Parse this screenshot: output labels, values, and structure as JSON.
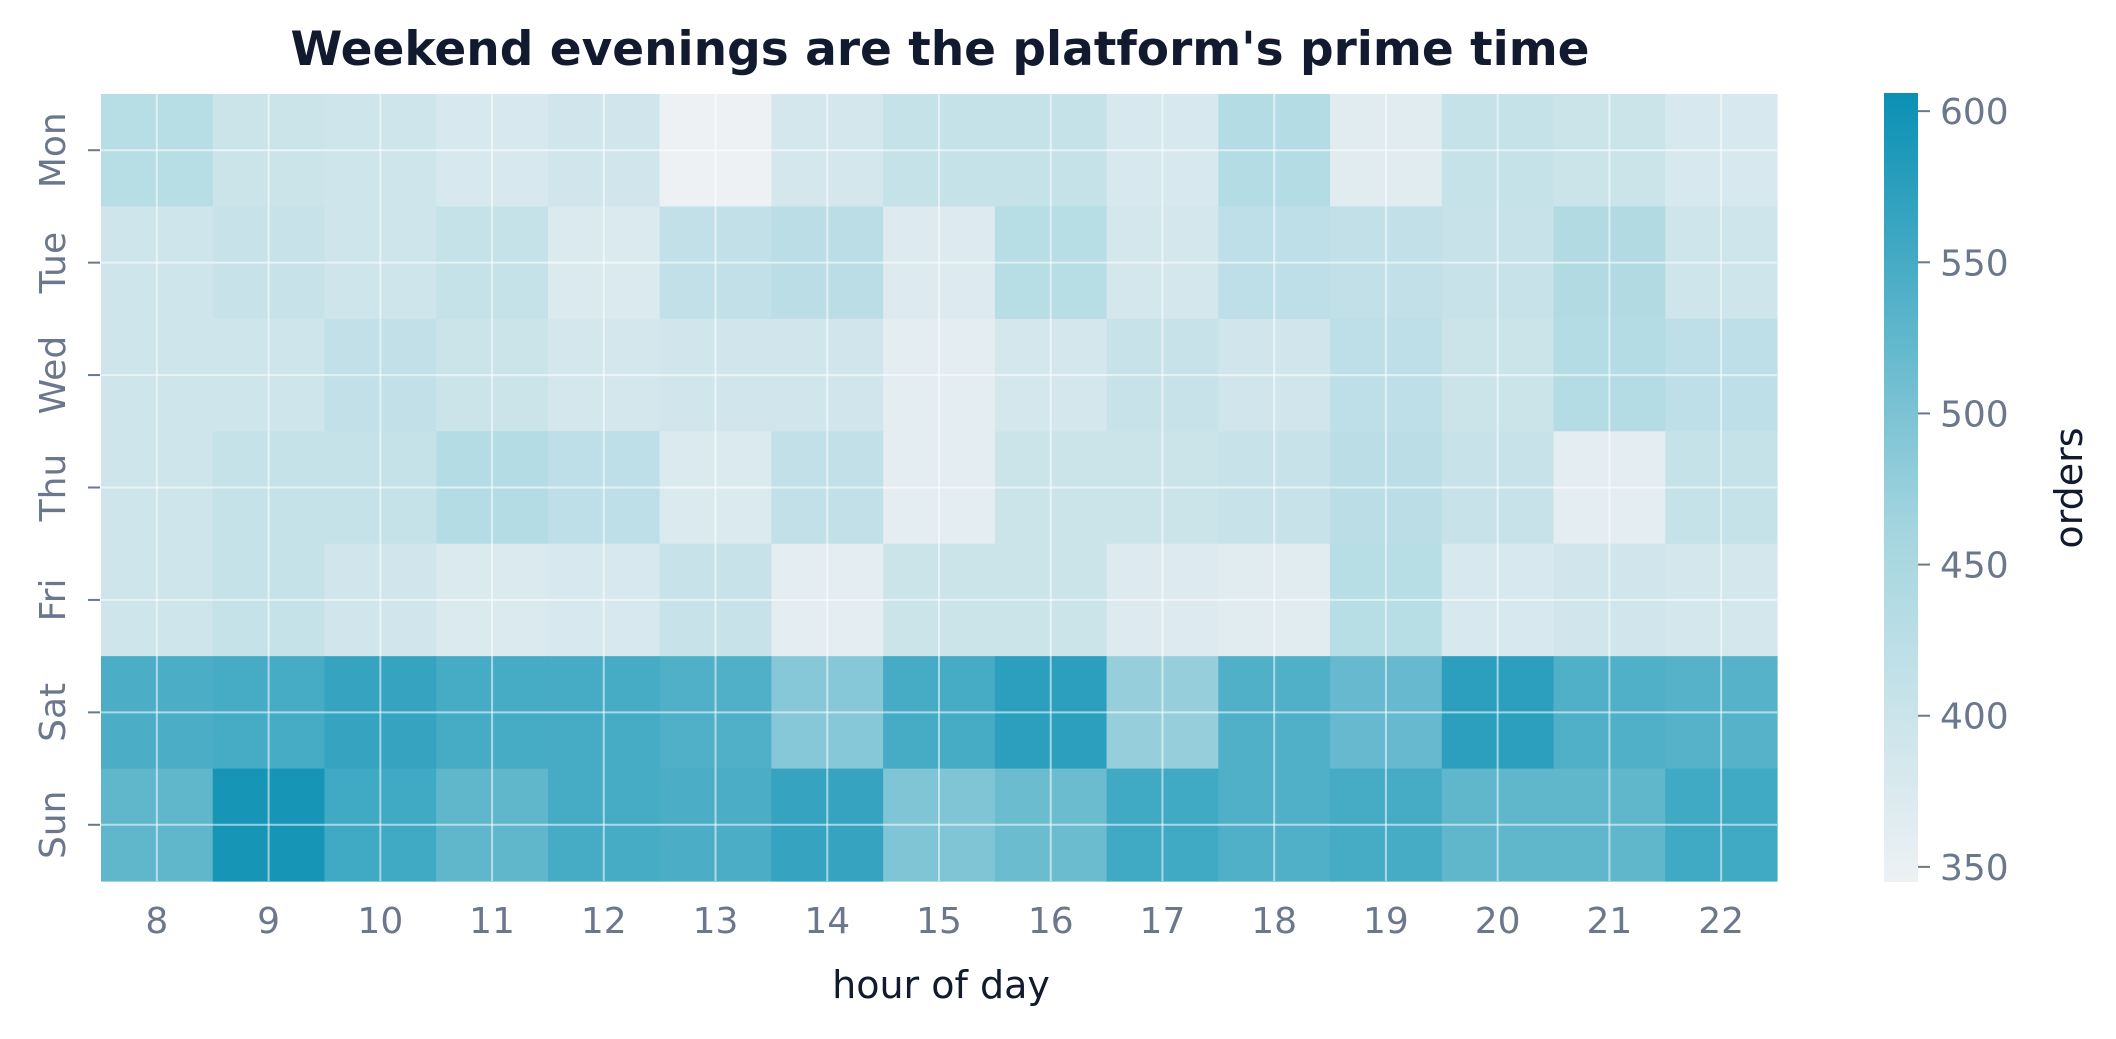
{
  "chart_data": {
    "type": "heatmap",
    "title": "Weekend evenings are the platform's prime time",
    "xlabel": "hour of day",
    "ylabel": "",
    "x": [
      "8",
      "9",
      "10",
      "11",
      "12",
      "13",
      "14",
      "15",
      "16",
      "17",
      "18",
      "19",
      "20",
      "21",
      "22"
    ],
    "y": [
      "Mon",
      "Tue",
      "Wed",
      "Thu",
      "Fri",
      "Sat",
      "Sun"
    ],
    "values": [
      [
        430,
        400,
        395,
        380,
        390,
        345,
        385,
        410,
        410,
        380,
        435,
        365,
        410,
        400,
        380
      ],
      [
        395,
        405,
        395,
        410,
        375,
        415,
        425,
        370,
        430,
        385,
        420,
        415,
        405,
        440,
        395
      ],
      [
        395,
        395,
        415,
        400,
        385,
        390,
        390,
        360,
        385,
        405,
        390,
        420,
        400,
        435,
        420
      ],
      [
        395,
        410,
        410,
        435,
        420,
        375,
        415,
        360,
        400,
        400,
        405,
        425,
        405,
        360,
        410
      ],
      [
        395,
        410,
        390,
        375,
        380,
        405,
        360,
        400,
        400,
        370,
        365,
        430,
        380,
        390,
        385
      ],
      [
        545,
        550,
        565,
        550,
        550,
        540,
        490,
        550,
        575,
        475,
        540,
        520,
        575,
        540,
        535
      ],
      [
        525,
        595,
        555,
        525,
        550,
        545,
        565,
        495,
        515,
        555,
        540,
        550,
        525,
        525,
        555
      ]
    ],
    "colorbar": {
      "label": "orders",
      "min": 345,
      "max": 606,
      "ticks": [
        350,
        400,
        450,
        500,
        550,
        600
      ],
      "color_low": "#edf1f4",
      "color_mid": "#a3d5df",
      "color_high": "#0a90b4"
    },
    "grid": true
  }
}
